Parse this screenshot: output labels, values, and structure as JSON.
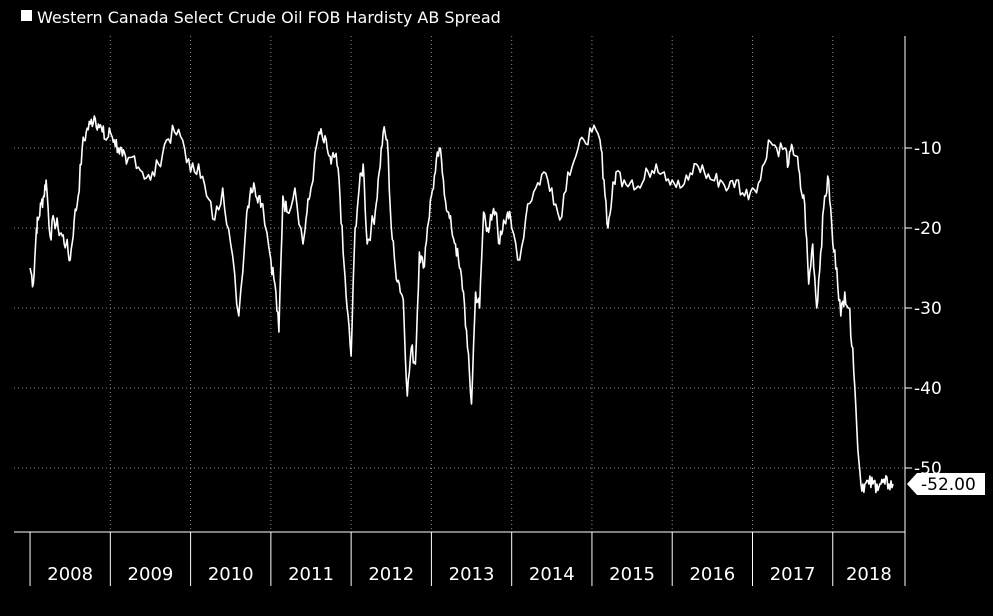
{
  "chart_data": {
    "type": "line",
    "title": "",
    "xlabel": "",
    "ylabel": "",
    "xlim": [
      2007.8,
      2018.9
    ],
    "ylim": [
      -58,
      4
    ],
    "y_axis_side": "right",
    "grid": true,
    "legend_position": "top-left",
    "line_color": "#ffffff",
    "background_color": "#000000",
    "y_ticks": [
      {
        "value": -10,
        "label": "-10"
      },
      {
        "value": -20,
        "label": "-20"
      },
      {
        "value": -30,
        "label": "-30"
      },
      {
        "value": -40,
        "label": "-40"
      },
      {
        "value": -50,
        "label": "-50"
      }
    ],
    "x_categories": [
      "2008",
      "2009",
      "2010",
      "2011",
      "2012",
      "2013",
      "2014",
      "2015",
      "2016",
      "2017",
      "2018"
    ],
    "last_value_label": "-52.00",
    "series": [
      {
        "name": "Western Canada Select Crude Oil FOB Hardisty AB Spread",
        "x": [
          2008.0,
          2008.04,
          2008.08,
          2008.1,
          2008.14,
          2008.17,
          2008.2,
          2008.25,
          2008.3,
          2008.35,
          2008.4,
          2008.45,
          2008.5,
          2008.55,
          2008.6,
          2008.65,
          2008.7,
          2008.75,
          2008.8,
          2008.85,
          2008.9,
          2008.95,
          2009.0,
          2009.05,
          2009.1,
          2009.15,
          2009.2,
          2009.3,
          2009.4,
          2009.5,
          2009.6,
          2009.7,
          2009.8,
          2009.9,
          2010.0,
          2010.1,
          2010.2,
          2010.3,
          2010.4,
          2010.5,
          2010.6,
          2010.7,
          2010.75,
          2010.8,
          2010.85,
          2010.9,
          2011.0,
          2011.05,
          2011.1,
          2011.15,
          2011.2,
          2011.3,
          2011.4,
          2011.45,
          2011.5,
          2011.6,
          2011.65,
          2011.7,
          2011.75,
          2011.8,
          2011.85,
          2011.9,
          2011.95,
          2012.0,
          2012.05,
          2012.1,
          2012.15,
          2012.2,
          2012.25,
          2012.3,
          2012.35,
          2012.4,
          2012.45,
          2012.5,
          2012.55,
          2012.6,
          2012.65,
          2012.7,
          2012.75,
          2012.8,
          2012.85,
          2012.9,
          2012.95,
          2013.0,
          2013.05,
          2013.1,
          2013.15,
          2013.2,
          2013.25,
          2013.3,
          2013.35,
          2013.4,
          2013.45,
          2013.5,
          2013.55,
          2013.6,
          2013.65,
          2013.7,
          2013.75,
          2013.8,
          2013.85,
          2013.9,
          2013.95,
          2014.0,
          2014.1,
          2014.2,
          2014.3,
          2014.4,
          2014.5,
          2014.6,
          2014.7,
          2014.8,
          2014.9,
          2015.0,
          2015.1,
          2015.15,
          2015.2,
          2015.25,
          2015.3,
          2015.4,
          2015.5,
          2015.6,
          2015.7,
          2015.8,
          2015.9,
          2016.0,
          2016.1,
          2016.2,
          2016.3,
          2016.4,
          2016.5,
          2016.6,
          2016.7,
          2016.8,
          2016.9,
          2017.0,
          2017.1,
          2017.2,
          2017.3,
          2017.4,
          2017.45,
          2017.5,
          2017.55,
          2017.6,
          2017.65,
          2017.7,
          2017.75,
          2017.8,
          2017.85,
          2017.9,
          2017.95,
          2018.0,
          2018.05,
          2018.1,
          2018.15,
          2018.2,
          2018.25,
          2018.3,
          2018.35,
          2018.4,
          2018.45,
          2018.5,
          2018.55,
          2018.6,
          2018.65,
          2018.7,
          2018.75
        ],
        "values": [
          -25,
          -27,
          -20,
          -19,
          -17,
          -16,
          -14,
          -21,
          -19,
          -20,
          -21,
          -22,
          -24,
          -19,
          -16,
          -10,
          -8,
          -7,
          -6,
          -7,
          -8,
          -9,
          -8,
          -9,
          -10,
          -11,
          -12,
          -11,
          -13,
          -14,
          -12,
          -9,
          -8,
          -9,
          -13,
          -12,
          -16,
          -19,
          -15,
          -22,
          -31,
          -18,
          -15,
          -15,
          -16,
          -17,
          -24,
          -27,
          -33,
          -16,
          -18,
          -15,
          -22,
          -18,
          -15,
          -8,
          -9,
          -10,
          -12,
          -11,
          -14,
          -23,
          -30,
          -36,
          -20,
          -15,
          -12,
          -22,
          -20,
          -18,
          -13,
          -8,
          -9,
          -20,
          -25,
          -27,
          -29,
          -41,
          -35,
          -37,
          -23,
          -25,
          -20,
          -16,
          -13,
          -10,
          -14,
          -18,
          -20,
          -22,
          -25,
          -28,
          -35,
          -42,
          -28,
          -30,
          -18,
          -20,
          -19,
          -18,
          -22,
          -19,
          -18,
          -20,
          -24,
          -17,
          -15,
          -13,
          -15,
          -19,
          -13,
          -11,
          -9,
          -8,
          -9,
          -14,
          -20,
          -16,
          -13,
          -14,
          -14,
          -15,
          -13,
          -12,
          -13,
          -14,
          -15,
          -14,
          -12,
          -13,
          -14,
          -14,
          -15,
          -14,
          -16,
          -15,
          -14,
          -9,
          -10,
          -10,
          -12,
          -10,
          -11,
          -15,
          -17,
          -27,
          -22,
          -30,
          -23,
          -16,
          -14,
          -22,
          -25,
          -31,
          -28,
          -30,
          -35,
          -45,
          -52,
          -52,
          -52,
          -52,
          -52,
          -52,
          -52,
          -52,
          -52
        ]
      }
    ]
  }
}
